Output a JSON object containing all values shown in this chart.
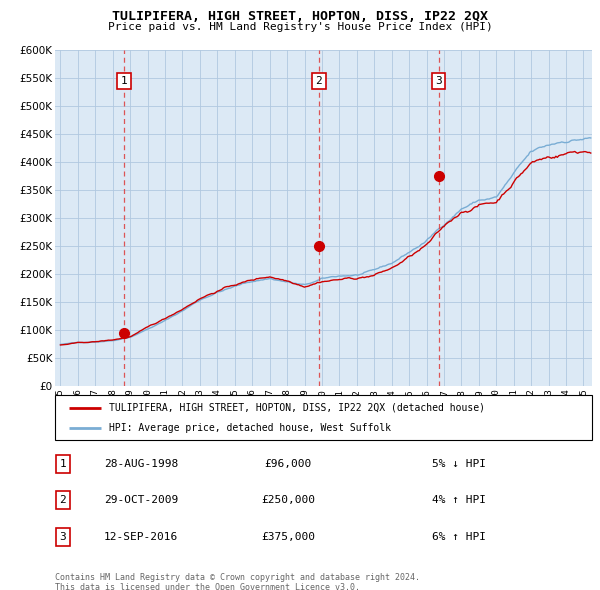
{
  "title": "TULIPIFERA, HIGH STREET, HOPTON, DISS, IP22 2QX",
  "subtitle": "Price paid vs. HM Land Registry's House Price Index (HPI)",
  "ylim": [
    0,
    600000
  ],
  "yticks": [
    0,
    50000,
    100000,
    150000,
    200000,
    250000,
    300000,
    350000,
    400000,
    450000,
    500000,
    550000,
    600000
  ],
  "background_color": "#ffffff",
  "plot_bg_color": "#dce9f5",
  "grid_color": "#b0c8e0",
  "sale_color": "#cc0000",
  "hpi_color": "#7aadd4",
  "sale_label": "TULIPIFERA, HIGH STREET, HOPTON, DISS, IP22 2QX (detached house)",
  "hpi_label": "HPI: Average price, detached house, West Suffolk",
  "sales": [
    {
      "num": 1,
      "date": "28-AUG-1998",
      "year": 1998.65,
      "price": 96000,
      "pct": "5%",
      "dir": "↓"
    },
    {
      "num": 2,
      "date": "29-OCT-2009",
      "year": 2009.83,
      "price": 250000,
      "pct": "4%",
      "dir": "↑"
    },
    {
      "num": 3,
      "date": "12-SEP-2016",
      "year": 2016.7,
      "price": 375000,
      "pct": "6%",
      "dir": "↑"
    }
  ],
  "footer_line1": "Contains HM Land Registry data © Crown copyright and database right 2024.",
  "footer_line2": "This data is licensed under the Open Government Licence v3.0."
}
